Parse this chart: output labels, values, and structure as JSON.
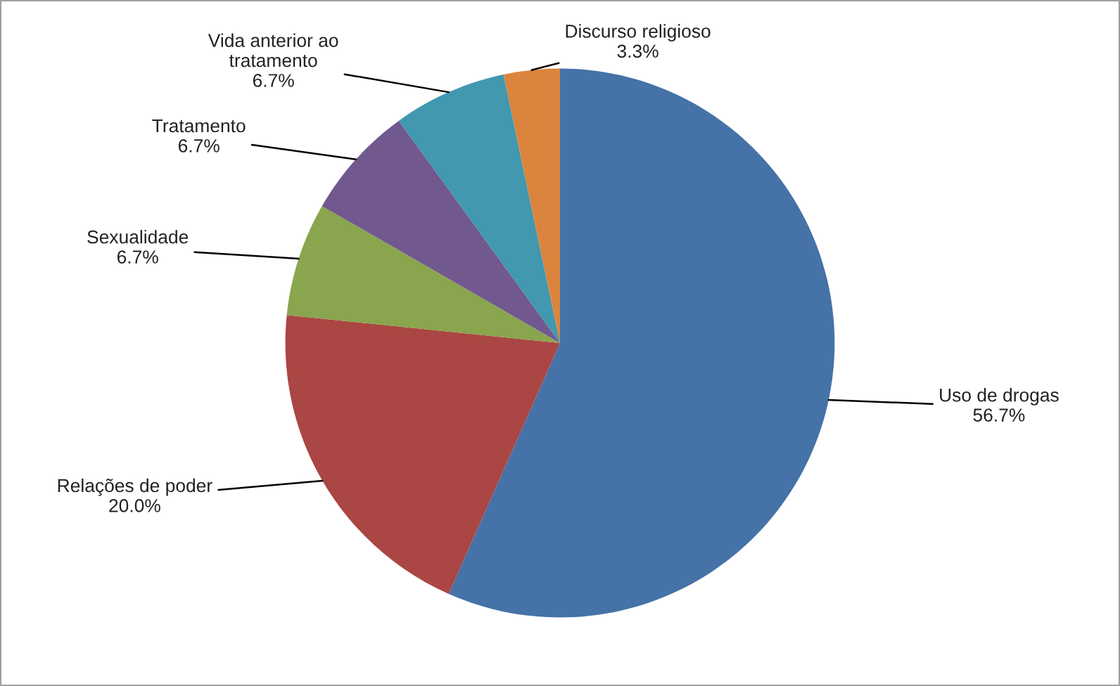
{
  "chart_data": {
    "type": "pie",
    "categories": [
      "Uso de drogas",
      "Relações de poder",
      "Sexualidade",
      "Tratamento",
      "Vida anterior ao\ntratamento",
      "Discurso religioso"
    ],
    "values": [
      56.7,
      20.0,
      6.7,
      6.7,
      6.7,
      3.3
    ],
    "value_labels": [
      "56.7%",
      "20.0%",
      "6.7%",
      "6.7%",
      "6.7%",
      "3.3%"
    ],
    "colors": [
      "#4572a7",
      "#aa4643",
      "#89a54e",
      "#71588f",
      "#4198af",
      "#db843d"
    ],
    "legend": false
  }
}
